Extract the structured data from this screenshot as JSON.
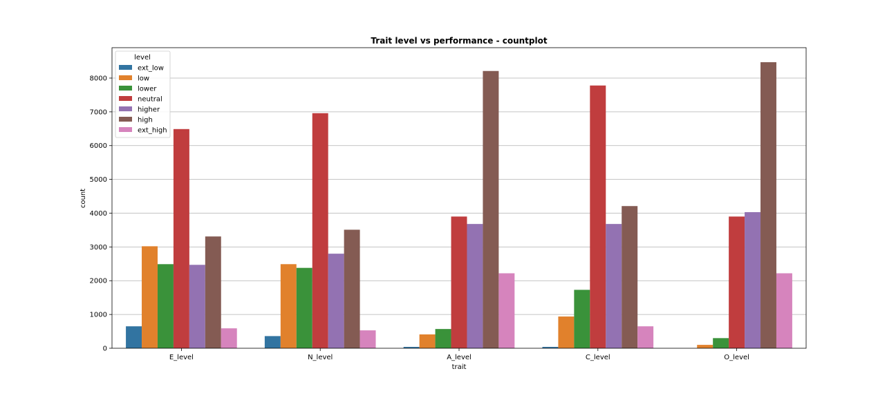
{
  "chart_data": {
    "type": "bar",
    "title": "Trait level vs performance - countplot",
    "xlabel": "trait",
    "ylabel": "count",
    "categories": [
      "E_level",
      "N_level",
      "A_level",
      "C_level",
      "O_level"
    ],
    "ylim": [
      0,
      8900
    ],
    "yticks": [
      0,
      1000,
      2000,
      3000,
      4000,
      5000,
      6000,
      7000,
      8000
    ],
    "grid": "y",
    "legend_title": "level",
    "legend_position": "top-left",
    "series": [
      {
        "name": "ext_low",
        "color": "#3274a1",
        "values": [
          650,
          360,
          40,
          40,
          0
        ]
      },
      {
        "name": "low",
        "color": "#e1812c",
        "values": [
          3020,
          2490,
          410,
          940,
          100
        ]
      },
      {
        "name": "lower",
        "color": "#3a923a",
        "values": [
          2490,
          2380,
          570,
          1730,
          300
        ]
      },
      {
        "name": "neutral",
        "color": "#c03d3e",
        "values": [
          6490,
          6960,
          3900,
          7780,
          3900
        ]
      },
      {
        "name": "higher",
        "color": "#9372b2",
        "values": [
          2470,
          2800,
          3680,
          3680,
          4030
        ]
      },
      {
        "name": "high",
        "color": "#845b53",
        "values": [
          3310,
          3510,
          8210,
          4210,
          8470
        ]
      },
      {
        "name": "ext_high",
        "color": "#d684bd",
        "values": [
          590,
          530,
          2220,
          650,
          2220
        ]
      }
    ]
  }
}
